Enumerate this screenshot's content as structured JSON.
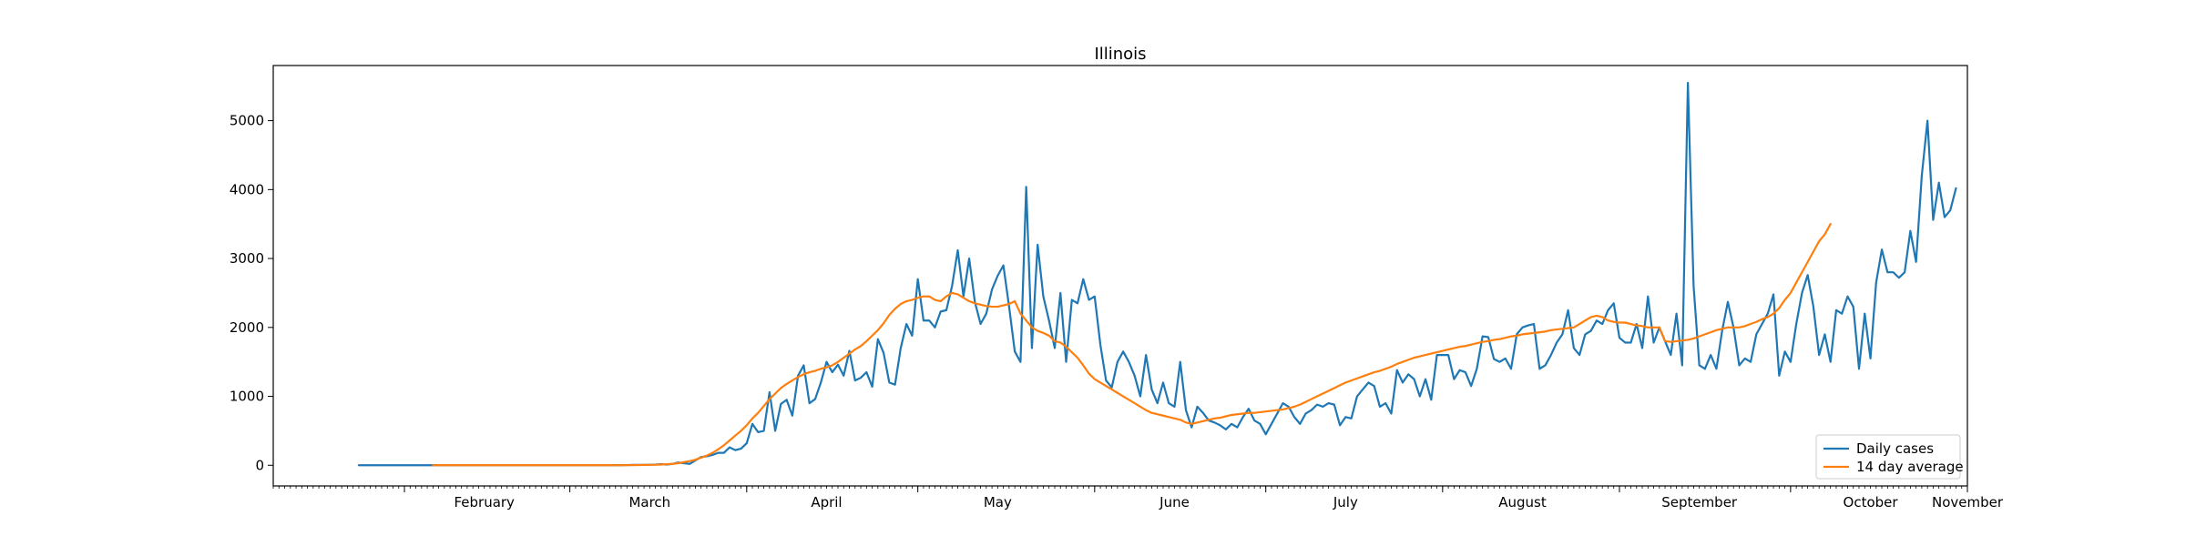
{
  "chart_data": {
    "type": "line",
    "title": "Illinois",
    "xlabel": "",
    "ylabel": "",
    "x_tick_labels": [
      "February",
      "March",
      "April",
      "May",
      "June",
      "July",
      "August",
      "September",
      "October",
      "November"
    ],
    "y_tick_labels": [
      "0",
      "1000",
      "2000",
      "3000",
      "4000",
      "5000"
    ],
    "ylim": [
      -300,
      5800
    ],
    "xlim": [
      "2020-01-09",
      "2020-11-01"
    ],
    "grid": false,
    "legend_position": "lower-right",
    "series": [
      {
        "name": "Daily cases",
        "color": "#1f77b4",
        "start_date": "2020-01-24",
        "values": [
          0,
          0,
          0,
          0,
          0,
          0,
          0,
          0,
          0,
          0,
          0,
          0,
          0,
          0,
          0,
          0,
          0,
          0,
          0,
          0,
          0,
          0,
          0,
          0,
          0,
          0,
          0,
          0,
          0,
          0,
          0,
          0,
          0,
          0,
          0,
          0,
          0,
          0,
          0,
          0,
          0,
          0,
          0,
          0,
          0,
          2,
          0,
          3,
          5,
          5,
          5,
          8,
          10,
          15,
          10,
          20,
          40,
          30,
          20,
          70,
          120,
          130,
          150,
          180,
          180,
          260,
          220,
          240,
          320,
          600,
          480,
          500,
          1060,
          500,
          890,
          950,
          720,
          1300,
          1450,
          900,
          960,
          1200,
          1500,
          1350,
          1460,
          1300,
          1660,
          1230,
          1270,
          1350,
          1140,
          1830,
          1630,
          1200,
          1170,
          1700,
          2050,
          1880,
          2700,
          2100,
          2100,
          2000,
          2230,
          2250,
          2600,
          3120,
          2450,
          3000,
          2370,
          2050,
          2200,
          2550,
          2750,
          2900,
          2300,
          1650,
          1500,
          4040,
          1700,
          3200,
          2450,
          2100,
          1700,
          2500,
          1500,
          2400,
          2350,
          2700,
          2400,
          2450,
          1750,
          1230,
          1130,
          1500,
          1650,
          1500,
          1300,
          1000,
          1600,
          1100,
          900,
          1200,
          900,
          850,
          1500,
          800,
          550,
          850,
          760,
          650,
          620,
          580,
          520,
          600,
          550,
          700,
          820,
          650,
          600,
          450,
          600,
          750,
          900,
          850,
          700,
          600,
          750,
          800,
          880,
          850,
          900,
          880,
          580,
          700,
          680,
          1000,
          1100,
          1200,
          1150,
          850,
          900,
          750,
          1380,
          1200,
          1320,
          1250,
          1000,
          1250,
          950,
          1600,
          1600,
          1600,
          1250,
          1380,
          1350,
          1150,
          1400,
          1870,
          1860,
          1540,
          1500,
          1550,
          1400,
          1900,
          2000,
          2030,
          2050,
          1400,
          1450,
          1600,
          1780,
          1900,
          2250,
          1700,
          1600,
          1900,
          1950,
          2100,
          2050,
          2250,
          2350,
          1850,
          1780,
          1780,
          2050,
          1700,
          2450,
          1780,
          2000,
          1800,
          1600,
          2200,
          1450,
          5550,
          2600,
          1450,
          1400,
          1600,
          1400,
          1950,
          2370,
          2000,
          1450,
          1550,
          1500,
          1900,
          2050,
          2200,
          2480,
          1300,
          1650,
          1500,
          2050,
          2500,
          2760,
          2300,
          1600,
          1900,
          1500,
          2250,
          2200,
          2450,
          2300,
          1400,
          2200,
          1550,
          2650,
          3130,
          2800,
          2800,
          2720,
          2800,
          3400,
          2950,
          4200,
          5000,
          3560,
          4100,
          3600,
          3700,
          4020
        ]
      },
      {
        "name": "14 day average",
        "color": "#ff7f0e",
        "start_date": "2020-02-06",
        "values": [
          0,
          0,
          0,
          0,
          0,
          0,
          0,
          0,
          0,
          0,
          0,
          0,
          0,
          0,
          0,
          0,
          0,
          0,
          0,
          0,
          0,
          0,
          0,
          0,
          0,
          0,
          0,
          0,
          0,
          0,
          0,
          0,
          0,
          0,
          1,
          2,
          3,
          5,
          6,
          8,
          10,
          15,
          20,
          30,
          45,
          60,
          80,
          110,
          140,
          180,
          230,
          290,
          360,
          430,
          500,
          580,
          680,
          760,
          860,
          960,
          1040,
          1120,
          1180,
          1230,
          1280,
          1320,
          1350,
          1370,
          1400,
          1420,
          1450,
          1500,
          1560,
          1620,
          1680,
          1730,
          1800,
          1880,
          1960,
          2060,
          2180,
          2270,
          2340,
          2380,
          2400,
          2430,
          2450,
          2450,
          2400,
          2380,
          2450,
          2500,
          2480,
          2430,
          2380,
          2350,
          2330,
          2310,
          2300,
          2300,
          2320,
          2340,
          2380,
          2200,
          2100,
          2000,
          1950,
          1920,
          1880,
          1800,
          1780,
          1720,
          1640,
          1560,
          1450,
          1330,
          1250,
          1200,
          1150,
          1100,
          1050,
          1000,
          950,
          900,
          850,
          800,
          760,
          740,
          720,
          700,
          680,
          660,
          620,
          600,
          620,
          640,
          660,
          680,
          690,
          710,
          730,
          740,
          750,
          760,
          760,
          770,
          780,
          790,
          800,
          810,
          830,
          850,
          880,
          920,
          960,
          1000,
          1040,
          1080,
          1120,
          1160,
          1200,
          1230,
          1260,
          1290,
          1320,
          1350,
          1370,
          1400,
          1430,
          1470,
          1500,
          1530,
          1560,
          1580,
          1600,
          1620,
          1640,
          1660,
          1680,
          1700,
          1720,
          1730,
          1750,
          1770,
          1790,
          1800,
          1820,
          1830,
          1850,
          1870,
          1880,
          1900,
          1910,
          1920,
          1930,
          1940,
          1960,
          1970,
          1980,
          1990,
          2000,
          2050,
          2100,
          2150,
          2170,
          2150,
          2100,
          2080,
          2070,
          2070,
          2050,
          2030,
          2020,
          2000,
          2000,
          2000,
          1800,
          1790,
          1800,
          1810,
          1820,
          1840,
          1870,
          1900,
          1930,
          1960,
          1980,
          2000,
          2000,
          2000,
          2020,
          2050,
          2080,
          2120,
          2150,
          2200,
          2280,
          2400,
          2500,
          2650,
          2800,
          2950,
          3100,
          3250,
          3350,
          3500
        ]
      }
    ]
  }
}
